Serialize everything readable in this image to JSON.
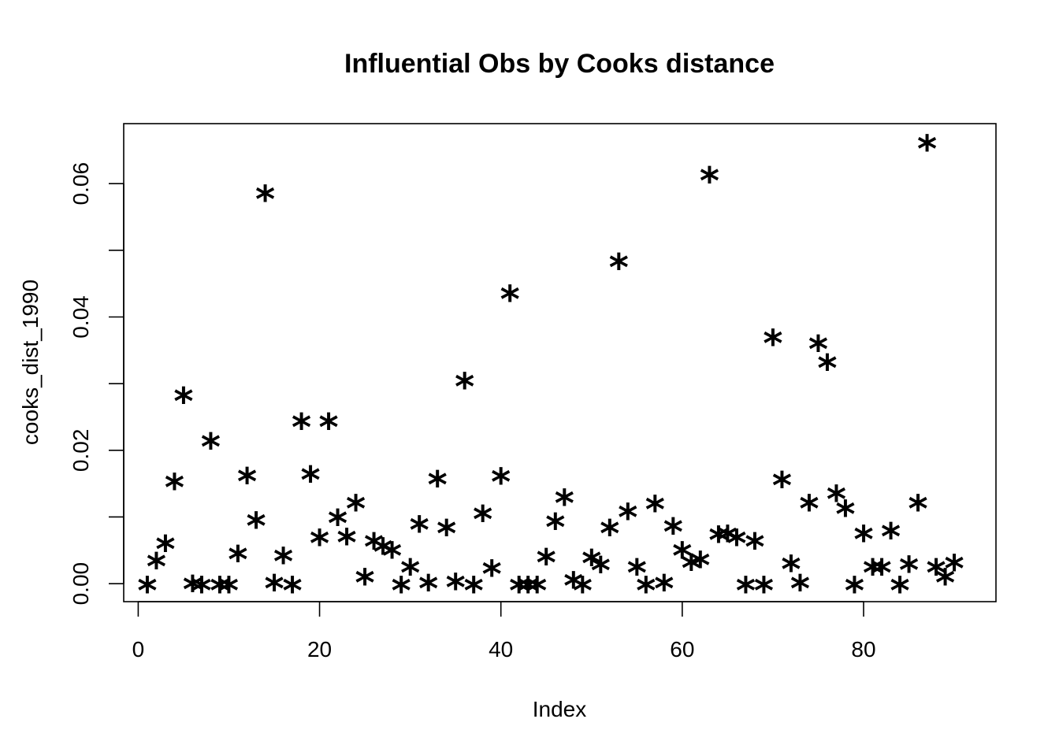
{
  "chart_data": {
    "type": "scatter",
    "title": "Influential Obs by Cooks distance",
    "xlabel": "Index",
    "ylabel": "cooks_dist_1990",
    "marker": "*",
    "xlim": [
      -1.6,
      94.6
    ],
    "ylim": [
      -0.0027,
      0.069
    ],
    "x_ticks": [
      0,
      20,
      40,
      60,
      80
    ],
    "y_ticks": [
      0.0,
      0.01,
      0.02,
      0.03,
      0.04,
      0.05,
      0.06
    ],
    "y_tick_labels": [
      "0.00",
      "",
      "0.02",
      "",
      "0.04",
      "",
      "0.06"
    ],
    "x_tick_labels": [
      "0",
      "20",
      "40",
      "60",
      "80"
    ],
    "grid": false,
    "x": [
      1,
      2,
      3,
      4,
      5,
      6,
      7,
      8,
      9,
      10,
      11,
      12,
      13,
      14,
      15,
      16,
      17,
      18,
      19,
      20,
      21,
      22,
      23,
      24,
      25,
      26,
      27,
      28,
      29,
      30,
      31,
      32,
      33,
      34,
      35,
      36,
      37,
      38,
      39,
      40,
      41,
      42,
      43,
      44,
      45,
      46,
      47,
      48,
      49,
      50,
      51,
      52,
      53,
      54,
      55,
      56,
      57,
      58,
      59,
      60,
      61,
      62,
      63,
      64,
      65,
      66,
      67,
      68,
      69,
      70,
      71,
      72,
      73,
      74,
      75,
      76,
      77,
      78,
      79,
      80,
      81,
      82,
      83,
      84,
      85,
      86,
      87,
      88,
      89,
      90
    ],
    "y": [
      0.0,
      0.0036,
      0.0062,
      0.0155,
      0.0284,
      0.0002,
      0.0,
      0.0216,
      0.0,
      0.0,
      0.0047,
      0.0164,
      0.0097,
      0.0587,
      0.0003,
      0.0044,
      0.0,
      0.0245,
      0.0166,
      0.0071,
      0.0245,
      0.0101,
      0.0072,
      0.0123,
      0.0012,
      0.0066,
      0.0058,
      0.0052,
      0.0,
      0.0027,
      0.0091,
      0.0003,
      0.0159,
      0.0086,
      0.0005,
      0.0306,
      0.0,
      0.0107,
      0.0025,
      0.0163,
      0.0437,
      0.0,
      0.0,
      0.0,
      0.0042,
      0.0095,
      0.0131,
      0.0007,
      0.0,
      0.0041,
      0.003,
      0.0086,
      0.0485,
      0.011,
      0.0027,
      0.0,
      0.0122,
      0.0003,
      0.0088,
      0.0052,
      0.0034,
      0.0038,
      0.0615,
      0.0076,
      0.0077,
      0.0071,
      0.0,
      0.0066,
      0.0,
      0.0371,
      0.0158,
      0.0032,
      0.0003,
      0.0123,
      0.0362,
      0.0334,
      0.0137,
      0.0115,
      0.0,
      0.0077,
      0.0027,
      0.0027,
      0.0081,
      0.0,
      0.0031,
      0.0123,
      0.0663,
      0.0027,
      0.0012,
      0.0033
    ]
  }
}
